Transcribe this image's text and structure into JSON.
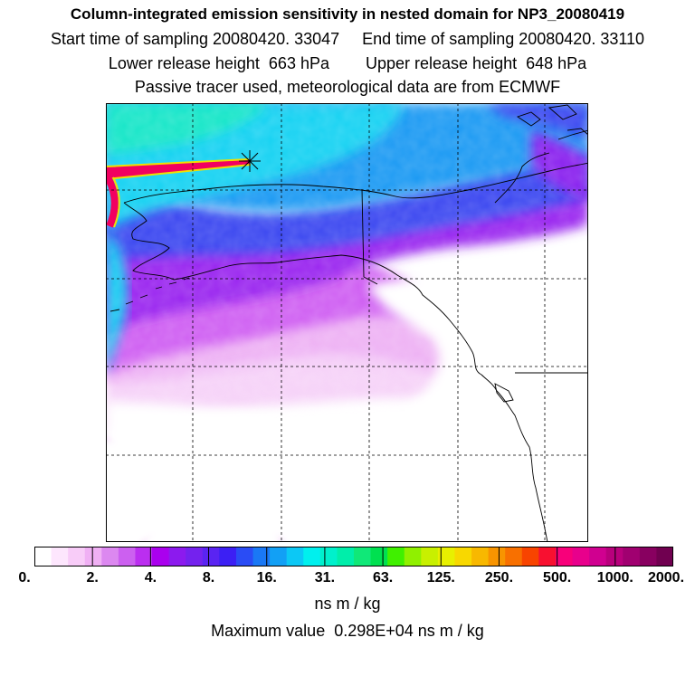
{
  "header": {
    "title": "Column-integrated emission sensitivity in nested domain for NP3_20080419",
    "sampling": "Start time of sampling 20080420. 33047     End time of sampling 20080420. 33110",
    "release": "Lower release height  663 hPa        Upper release height  648 hPa",
    "note": "Passive tracer used, meteorological data are from ECMWF"
  },
  "colorbar": {
    "tick_labels": [
      "0.",
      "2.",
      "4.",
      "8.",
      "16.",
      "31.",
      "63.",
      "125.",
      "250.",
      "500.",
      "1000.",
      "2000."
    ],
    "colors": [
      "#ffffff",
      "#fde6fd",
      "#f8ccf8",
      "#f0b0f4",
      "#dc88f0",
      "#cc60f0",
      "#bb2ef0",
      "#aa00ee",
      "#8c1aee",
      "#7422ee",
      "#5a24f2",
      "#3c1ff4",
      "#2a4cf5",
      "#1a78f5",
      "#12a0f5",
      "#0cc8f5",
      "#00f0ee",
      "#00f0cc",
      "#00eeaa",
      "#10e878",
      "#00e050",
      "#40f000",
      "#90f000",
      "#c8f000",
      "#e8f000",
      "#f8d800",
      "#f8b800",
      "#f89400",
      "#f87000",
      "#f84400",
      "#f81030",
      "#f8007a",
      "#e8008c",
      "#d00090",
      "#b8007c",
      "#a00070",
      "#880060",
      "#700050"
    ]
  },
  "units": "ns m / kg",
  "max_value": "Maximum value  0.298E+04 ns m / kg",
  "map_colors": {
    "white": "#ffffff",
    "pink": "#f5c8f7",
    "magenta": "#cc55f2",
    "violet": "#9a22ef",
    "blue": "#3844f0",
    "azure": "#1a9af3",
    "cyan": "#11ddf0",
    "aqua_green": "#10e8c0",
    "red": "#f00050",
    "yellow": "#f0e000"
  },
  "marker": "release-point-asterisk"
}
